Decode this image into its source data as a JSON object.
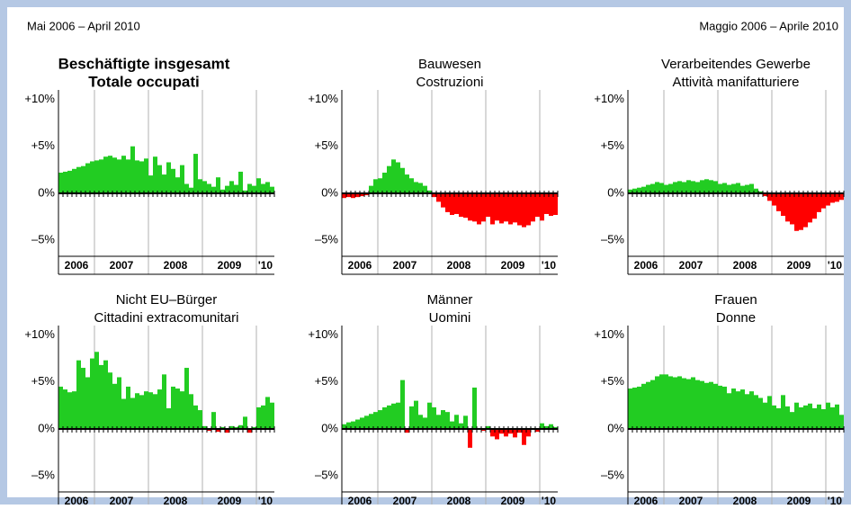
{
  "header": {
    "left": "Mai 2006 – April 2010",
    "right": "Maggio 2006 – Aprile 2010"
  },
  "chart_data": [
    {
      "type": "bar",
      "title": "Beschäftigte insgesamt",
      "subtitle": "Totale occupati",
      "bold_title": true,
      "categories": [
        "2006",
        "2006",
        "2006",
        "2006",
        "2006",
        "2006",
        "2006",
        "2006",
        "2007",
        "2007",
        "2007",
        "2007",
        "2007",
        "2007",
        "2007",
        "2007",
        "2007",
        "2007",
        "2007",
        "2007",
        "2008",
        "2008",
        "2008",
        "2008",
        "2008",
        "2008",
        "2008",
        "2008",
        "2008",
        "2008",
        "2008",
        "2008",
        "2009",
        "2009",
        "2009",
        "2009",
        "2009",
        "2009",
        "2009",
        "2009",
        "2009",
        "2009",
        "2009",
        "2009",
        "'10",
        "'10",
        "'10",
        "'10"
      ],
      "values": [
        2.2,
        2.3,
        2.4,
        2.6,
        2.8,
        2.9,
        3.2,
        3.4,
        3.5,
        3.6,
        3.9,
        4.0,
        3.8,
        3.6,
        4.0,
        3.6,
        5.0,
        3.5,
        3.4,
        3.7,
        1.9,
        3.9,
        3.0,
        2.0,
        3.3,
        2.6,
        1.7,
        3.0,
        1.0,
        0.6,
        4.2,
        1.5,
        1.3,
        1.0,
        0.7,
        1.7,
        0.4,
        0.8,
        1.3,
        0.9,
        2.3,
        0.3,
        1.0,
        0.8,
        1.6,
        1.0,
        1.2,
        0.7
      ],
      "color": "#22cc22",
      "negative_color": "#ff0000",
      "ylim": [
        -6.7,
        11
      ],
      "yticks": [
        {
          "value": 10,
          "label": "+10%"
        },
        {
          "value": 5,
          "label": "+5%"
        },
        {
          "value": 0,
          "label": "0%"
        },
        {
          "value": -5,
          "label": "–5%"
        }
      ]
    },
    {
      "type": "bar",
      "title": "Bauwesen",
      "subtitle": "Costruzioni",
      "bold_title": false,
      "categories": [
        "2006",
        "2006",
        "2006",
        "2006",
        "2006",
        "2006",
        "2006",
        "2006",
        "2007",
        "2007",
        "2007",
        "2007",
        "2007",
        "2007",
        "2007",
        "2007",
        "2007",
        "2007",
        "2007",
        "2007",
        "2008",
        "2008",
        "2008",
        "2008",
        "2008",
        "2008",
        "2008",
        "2008",
        "2008",
        "2008",
        "2008",
        "2008",
        "2009",
        "2009",
        "2009",
        "2009",
        "2009",
        "2009",
        "2009",
        "2009",
        "2009",
        "2009",
        "2009",
        "2009",
        "'10",
        "'10",
        "'10",
        "'10"
      ],
      "values": [
        -0.5,
        -0.4,
        -0.5,
        -0.4,
        -0.3,
        -0.2,
        0.8,
        1.5,
        1.6,
        2.2,
        2.9,
        3.6,
        3.3,
        2.7,
        2.0,
        1.6,
        1.2,
        1.1,
        0.8,
        0.3,
        -0.4,
        -0.9,
        -1.5,
        -2.0,
        -2.3,
        -2.2,
        -2.5,
        -2.6,
        -2.9,
        -3.0,
        -3.3,
        -3.0,
        -2.5,
        -3.3,
        -2.9,
        -3.2,
        -3.0,
        -3.3,
        -3.1,
        -3.4,
        -3.6,
        -3.4,
        -3.0,
        -2.5,
        -2.9,
        -2.2,
        -2.4,
        -2.3
      ],
      "color": "#22cc22",
      "negative_color": "#ff0000",
      "ylim": [
        -6.7,
        11
      ],
      "yticks": [
        {
          "value": 10,
          "label": "+10%"
        },
        {
          "value": 5,
          "label": "+5%"
        },
        {
          "value": 0,
          "label": "0%"
        },
        {
          "value": -5,
          "label": "–5%"
        }
      ]
    },
    {
      "type": "bar",
      "title": "Verarbeitendes Gewerbe",
      "subtitle": "Attività manifatturiere",
      "bold_title": false,
      "categories": [
        "2006",
        "2006",
        "2006",
        "2006",
        "2006",
        "2006",
        "2006",
        "2006",
        "2007",
        "2007",
        "2007",
        "2007",
        "2007",
        "2007",
        "2007",
        "2007",
        "2007",
        "2007",
        "2007",
        "2007",
        "2008",
        "2008",
        "2008",
        "2008",
        "2008",
        "2008",
        "2008",
        "2008",
        "2008",
        "2008",
        "2008",
        "2008",
        "2009",
        "2009",
        "2009",
        "2009",
        "2009",
        "2009",
        "2009",
        "2009",
        "2009",
        "2009",
        "2009",
        "2009",
        "'10",
        "'10",
        "'10",
        "'10"
      ],
      "values": [
        0.4,
        0.5,
        0.6,
        0.7,
        0.9,
        1.0,
        1.2,
        1.1,
        0.9,
        1.0,
        1.2,
        1.3,
        1.2,
        1.4,
        1.3,
        1.2,
        1.4,
        1.5,
        1.4,
        1.3,
        1.0,
        1.1,
        0.9,
        1.0,
        1.1,
        0.8,
        0.9,
        1.0,
        0.5,
        0.2,
        -0.3,
        -0.8,
        -1.3,
        -1.9,
        -2.4,
        -3.0,
        -3.3,
        -4.0,
        -3.9,
        -3.6,
        -3.1,
        -2.7,
        -2.0,
        -1.6,
        -1.3,
        -1.0,
        -0.9,
        -0.7
      ],
      "color": "#22cc22",
      "negative_color": "#ff0000",
      "ylim": [
        -6.7,
        11
      ],
      "yticks": [
        {
          "value": 10,
          "label": "+10%"
        },
        {
          "value": 5,
          "label": "+5%"
        },
        {
          "value": 0,
          "label": "0%"
        },
        {
          "value": -5,
          "label": "–5%"
        }
      ]
    },
    {
      "type": "bar",
      "title": "Nicht EU–Bürger",
      "subtitle": "Cittadini extracomunitari",
      "bold_title": false,
      "categories": [
        "2006",
        "2006",
        "2006",
        "2006",
        "2006",
        "2006",
        "2006",
        "2006",
        "2007",
        "2007",
        "2007",
        "2007",
        "2007",
        "2007",
        "2007",
        "2007",
        "2007",
        "2007",
        "2007",
        "2007",
        "2008",
        "2008",
        "2008",
        "2008",
        "2008",
        "2008",
        "2008",
        "2008",
        "2008",
        "2008",
        "2008",
        "2008",
        "2009",
        "2009",
        "2009",
        "2009",
        "2009",
        "2009",
        "2009",
        "2009",
        "2009",
        "2009",
        "2009",
        "2009",
        "'10",
        "'10",
        "'10",
        "'10"
      ],
      "values": [
        4.5,
        4.2,
        3.9,
        4.0,
        7.3,
        6.5,
        5.5,
        7.5,
        8.2,
        6.8,
        7.3,
        6.0,
        4.8,
        5.5,
        3.2,
        4.5,
        3.3,
        3.8,
        3.6,
        4.0,
        3.9,
        3.7,
        4.2,
        5.8,
        2.2,
        4.5,
        4.3,
        4.0,
        6.5,
        3.7,
        2.5,
        2.0,
        0.3,
        -0.2,
        1.8,
        -0.3,
        0.2,
        -0.4,
        0.3,
        0.2,
        0.4,
        1.3,
        -0.4,
        0.2,
        2.3,
        2.5,
        3.4,
        2.8
      ],
      "color": "#22cc22",
      "negative_color": "#ff0000",
      "ylim": [
        -6.7,
        11
      ],
      "yticks": [
        {
          "value": 10,
          "label": "+10%"
        },
        {
          "value": 5,
          "label": "+5%"
        },
        {
          "value": 0,
          "label": "0%"
        },
        {
          "value": -5,
          "label": "–5%"
        }
      ]
    },
    {
      "type": "bar",
      "title": "Männer",
      "subtitle": "Uomini",
      "bold_title": false,
      "categories": [
        "2006",
        "2006",
        "2006",
        "2006",
        "2006",
        "2006",
        "2006",
        "2006",
        "2007",
        "2007",
        "2007",
        "2007",
        "2007",
        "2007",
        "2007",
        "2007",
        "2007",
        "2007",
        "2007",
        "2007",
        "2008",
        "2008",
        "2008",
        "2008",
        "2008",
        "2008",
        "2008",
        "2008",
        "2008",
        "2008",
        "2008",
        "2008",
        "2009",
        "2009",
        "2009",
        "2009",
        "2009",
        "2009",
        "2009",
        "2009",
        "2009",
        "2009",
        "2009",
        "2009",
        "'10",
        "'10",
        "'10",
        "'10"
      ],
      "values": [
        0.5,
        0.7,
        0.8,
        1.0,
        1.2,
        1.4,
        1.6,
        1.8,
        2.0,
        2.3,
        2.5,
        2.7,
        2.8,
        5.2,
        -0.4,
        2.4,
        3.0,
        1.5,
        1.2,
        2.8,
        2.3,
        1.5,
        2.0,
        1.8,
        0.8,
        1.5,
        0.6,
        1.4,
        -2.0,
        4.4,
        0.1,
        -0.2,
        0.3,
        -0.8,
        -1.1,
        -0.5,
        -0.8,
        -0.5,
        -0.9,
        -0.4,
        -1.7,
        -0.8,
        0.1,
        -0.3,
        0.6,
        0.3,
        0.5,
        0.2
      ],
      "color": "#22cc22",
      "negative_color": "#ff0000",
      "ylim": [
        -6.7,
        11
      ],
      "yticks": [
        {
          "value": 10,
          "label": "+10%"
        },
        {
          "value": 5,
          "label": "+5%"
        },
        {
          "value": 0,
          "label": "0%"
        },
        {
          "value": -5,
          "label": "–5%"
        }
      ]
    },
    {
      "type": "bar",
      "title": "Frauen",
      "subtitle": "Donne",
      "bold_title": false,
      "categories": [
        "2006",
        "2006",
        "2006",
        "2006",
        "2006",
        "2006",
        "2006",
        "2006",
        "2007",
        "2007",
        "2007",
        "2007",
        "2007",
        "2007",
        "2007",
        "2007",
        "2007",
        "2007",
        "2007",
        "2007",
        "2008",
        "2008",
        "2008",
        "2008",
        "2008",
        "2008",
        "2008",
        "2008",
        "2008",
        "2008",
        "2008",
        "2008",
        "2009",
        "2009",
        "2009",
        "2009",
        "2009",
        "2009",
        "2009",
        "2009",
        "2009",
        "2009",
        "2009",
        "2009",
        "'10",
        "'10",
        "'10",
        "'10"
      ],
      "values": [
        4.3,
        4.4,
        4.5,
        4.8,
        5.0,
        5.2,
        5.6,
        5.8,
        5.8,
        5.6,
        5.5,
        5.6,
        5.4,
        5.3,
        5.5,
        5.2,
        5.1,
        4.9,
        5.0,
        4.8,
        4.6,
        4.5,
        3.8,
        4.3,
        4.0,
        4.2,
        3.7,
        4.0,
        3.6,
        3.3,
        2.8,
        3.5,
        2.5,
        2.2,
        3.6,
        2.4,
        1.8,
        2.8,
        2.3,
        2.5,
        2.7,
        2.2,
        2.6,
        2.1,
        2.8,
        2.3,
        2.6,
        1.5
      ],
      "color": "#22cc22",
      "negative_color": "#ff0000",
      "ylim": [
        -6.7,
        11
      ],
      "yticks": [
        {
          "value": 10,
          "label": "+10%"
        },
        {
          "value": 5,
          "label": "+5%"
        },
        {
          "value": 0,
          "label": "0%"
        },
        {
          "value": -5,
          "label": "–5%"
        }
      ]
    }
  ]
}
